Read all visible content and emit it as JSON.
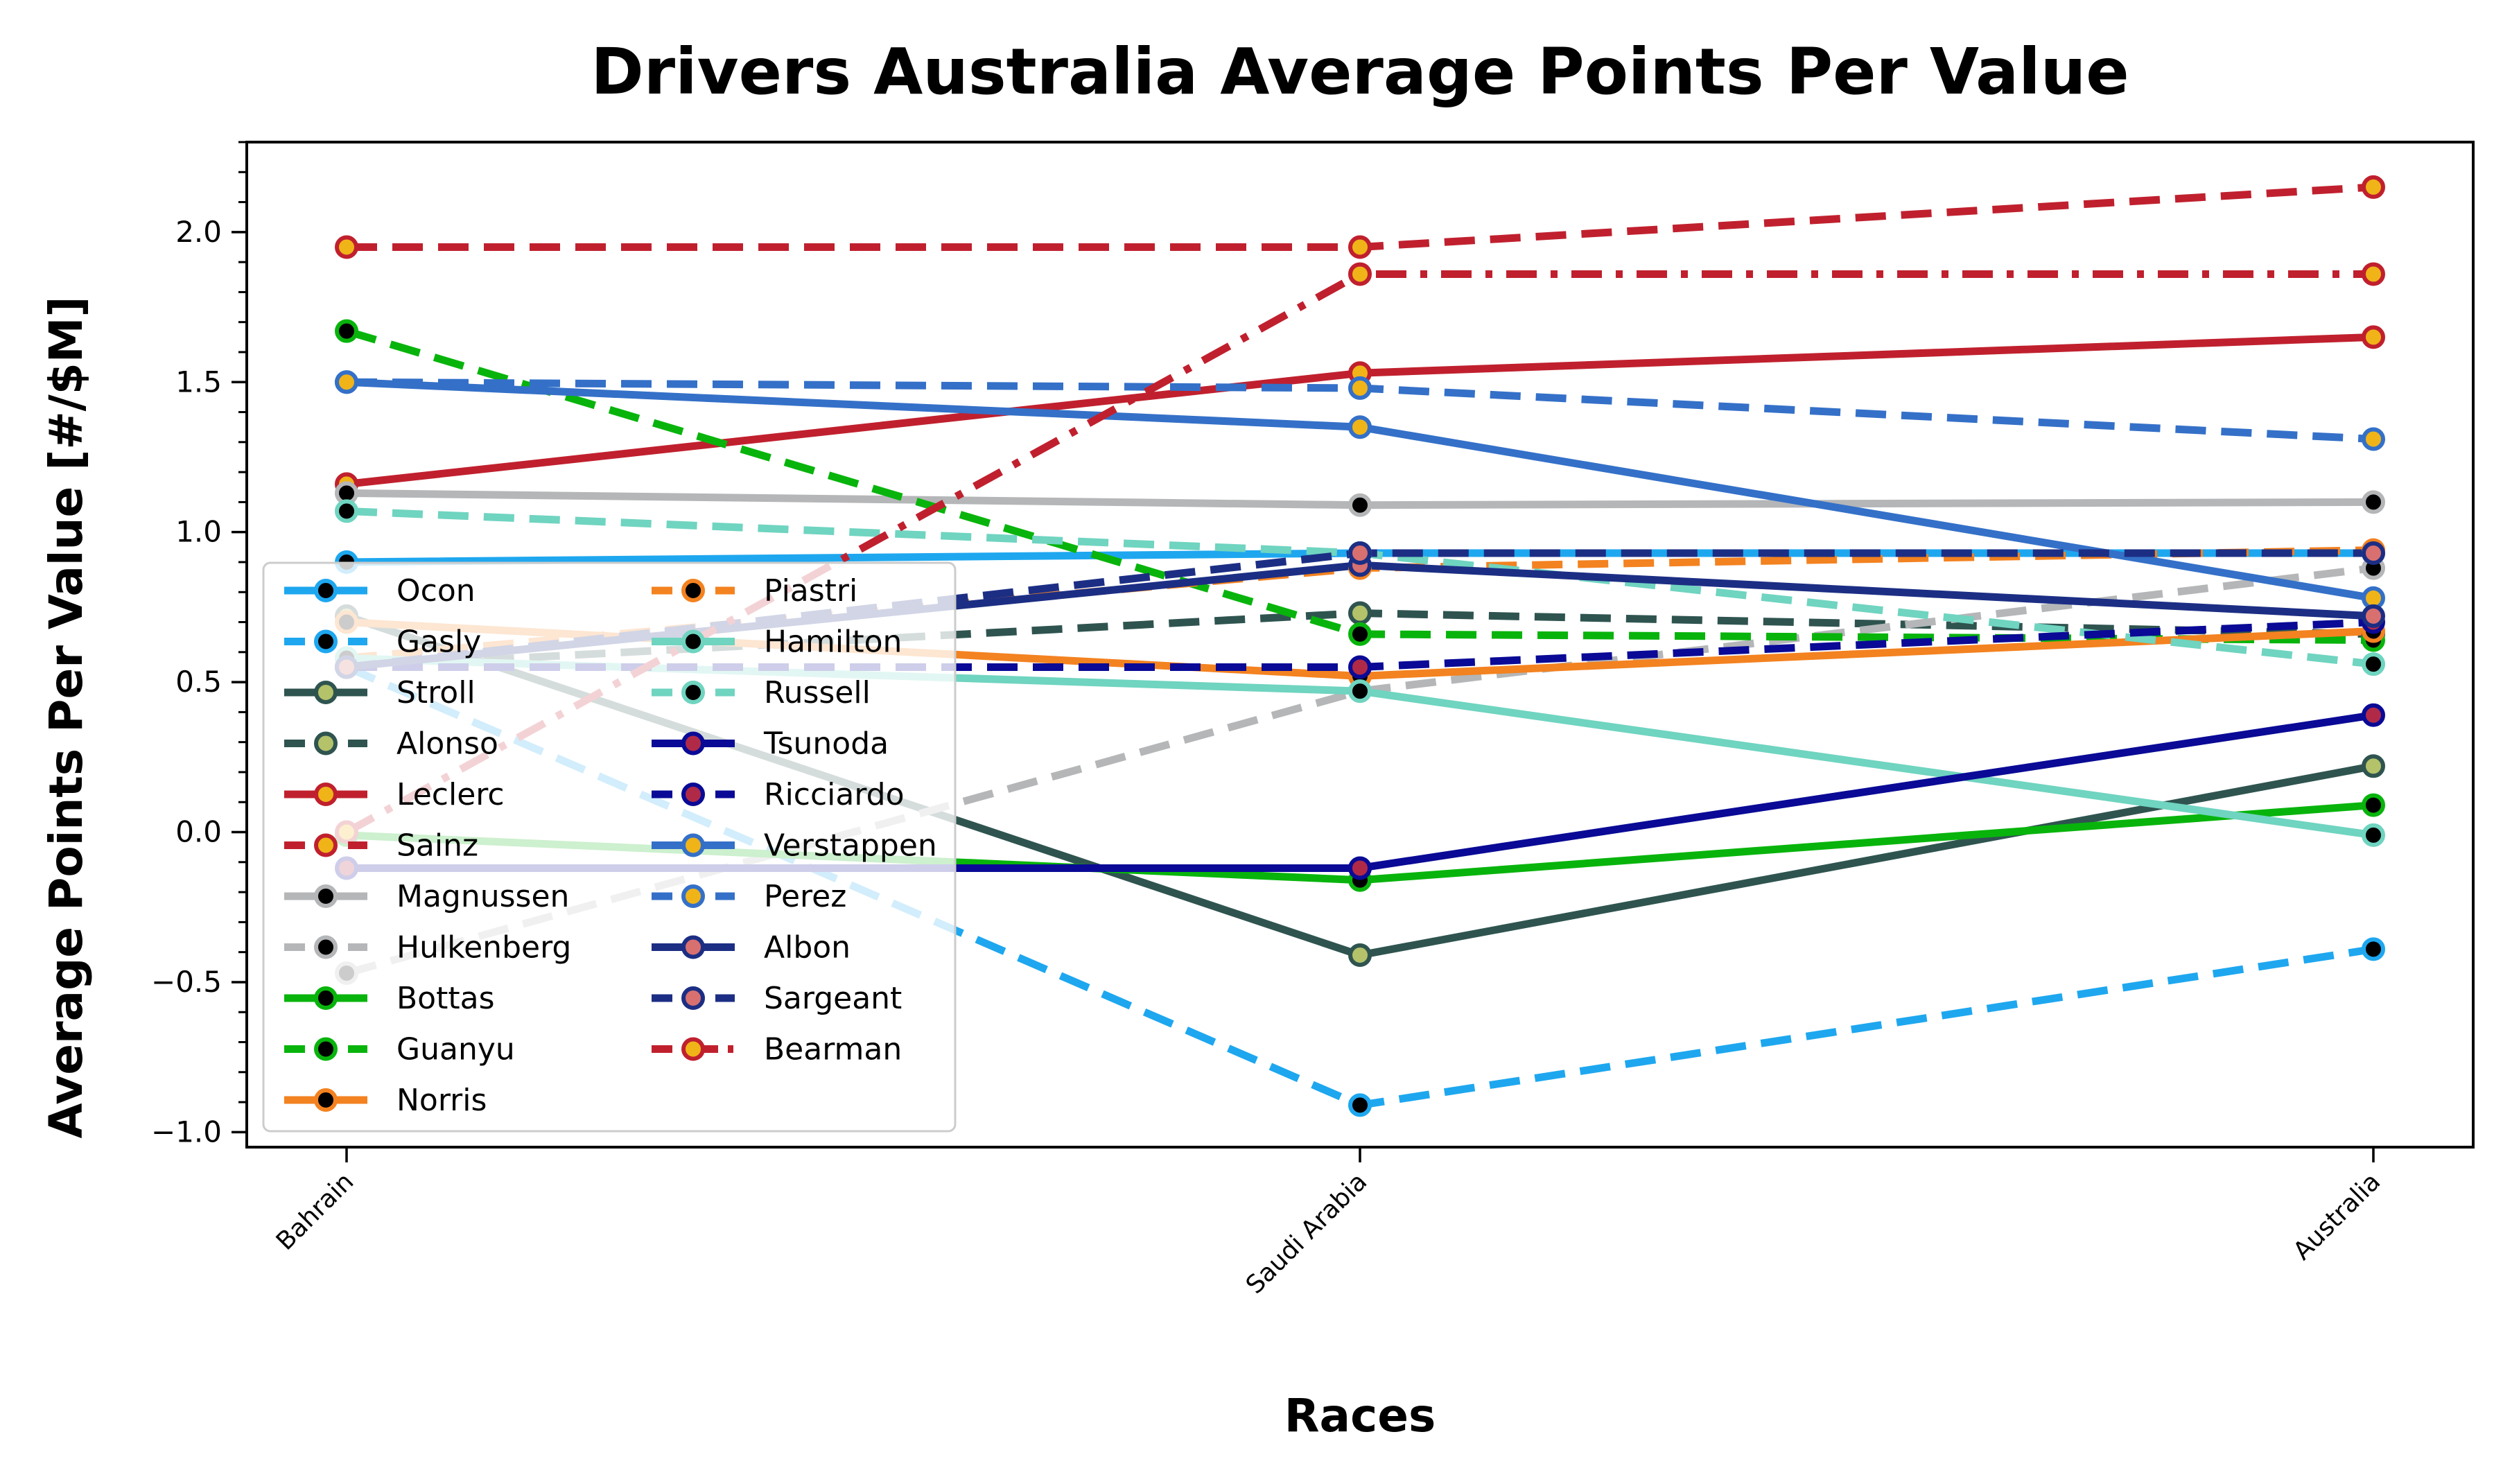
{
  "chart_data": {
    "type": "line",
    "title": "Drivers Australia Average Points Per Value",
    "xlabel": "Races",
    "ylabel": "Average Points Per Value [#/$M]",
    "categories": [
      "Bahrain",
      "Saudi Arabia",
      "Australia"
    ],
    "ylim": [
      -1.05,
      2.3
    ],
    "yticks": [
      -1.0,
      -0.5,
      0.0,
      0.5,
      1.0,
      1.5,
      2.0
    ],
    "ytick_labels": [
      "−1.0",
      "−0.5",
      "0.0",
      "0.5",
      "1.0",
      "1.5",
      "2.0"
    ],
    "grid": false,
    "legend_position": "lower-left",
    "legend_columns": 2,
    "series": [
      {
        "name": "Ocon",
        "values": [
          0.9,
          0.93,
          0.93
        ],
        "color": "#1ea7ef",
        "dash": "solid",
        "marker_face": "#000000",
        "marker_edge": "#1ea7ef"
      },
      {
        "name": "Gasly",
        "values": [
          0.55,
          -0.91,
          -0.39
        ],
        "color": "#1ea7ef",
        "dash": "dashed",
        "marker_face": "#000000",
        "marker_edge": "#1ea7ef"
      },
      {
        "name": "Stroll",
        "values": [
          0.72,
          -0.41,
          0.22
        ],
        "color": "#2f5450",
        "dash": "solid",
        "marker_face": "#b4c26a",
        "marker_edge": "#2f5450"
      },
      {
        "name": "Alonso",
        "values": [
          0.55,
          0.73,
          0.66
        ],
        "color": "#2f5450",
        "dash": "dashed",
        "marker_face": "#b4c26a",
        "marker_edge": "#2f5450"
      },
      {
        "name": "Leclerc",
        "values": [
          1.16,
          1.53,
          1.65
        ],
        "color": "#c0202e",
        "dash": "solid",
        "marker_face": "#f0b418",
        "marker_edge": "#c0202e"
      },
      {
        "name": "Sainz",
        "values": [
          1.95,
          1.95,
          2.15
        ],
        "color": "#c0202e",
        "dash": "dashed",
        "marker_face": "#f0b418",
        "marker_edge": "#c0202e"
      },
      {
        "name": "Magnussen",
        "values": [
          1.13,
          1.09,
          1.1
        ],
        "color": "#b4b6b8",
        "dash": "solid",
        "marker_face": "#000000",
        "marker_edge": "#b4b6b8"
      },
      {
        "name": "Hulkenberg",
        "values": [
          -0.47,
          0.47,
          0.88
        ],
        "color": "#b4b6b8",
        "dash": "dashed",
        "marker_face": "#000000",
        "marker_edge": "#b4b6b8"
      },
      {
        "name": "Bottas",
        "values": [
          -0.01,
          -0.16,
          0.09
        ],
        "color": "#08b40c",
        "dash": "solid",
        "marker_face": "#000000",
        "marker_edge": "#08b40c"
      },
      {
        "name": "Guanyu",
        "values": [
          1.67,
          0.66,
          0.64
        ],
        "color": "#08b40c",
        "dash": "dashed",
        "marker_face": "#000000",
        "marker_edge": "#08b40c"
      },
      {
        "name": "Norris",
        "values": [
          0.7,
          0.52,
          0.67
        ],
        "color": "#f38220",
        "dash": "solid",
        "marker_face": "#000000",
        "marker_edge": "#f38220"
      },
      {
        "name": "Piastri",
        "values": [
          0.58,
          0.88,
          0.94
        ],
        "color": "#f38220",
        "dash": "dashed",
        "marker_face": "#000000",
        "marker_edge": "#f38220"
      },
      {
        "name": "Hamilton",
        "values": [
          0.58,
          0.47,
          -0.01
        ],
        "color": "#6fd4c0",
        "dash": "solid",
        "marker_face": "#000000",
        "marker_edge": "#6fd4c0"
      },
      {
        "name": "Russell",
        "values": [
          1.07,
          0.93,
          0.56
        ],
        "color": "#6fd4c0",
        "dash": "dashed",
        "marker_face": "#000000",
        "marker_edge": "#6fd4c0"
      },
      {
        "name": "Tsunoda",
        "values": [
          -0.12,
          -0.12,
          0.39
        ],
        "color": "#0a0a96",
        "dash": "solid",
        "marker_face": "#b02a48",
        "marker_edge": "#0a0a96"
      },
      {
        "name": "Ricciardo",
        "values": [
          0.55,
          0.55,
          0.7
        ],
        "color": "#0a0a96",
        "dash": "dashed",
        "marker_face": "#b02a48",
        "marker_edge": "#0a0a96"
      },
      {
        "name": "Verstappen",
        "values": [
          1.5,
          1.35,
          0.78
        ],
        "color": "#3470c8",
        "dash": "solid",
        "marker_face": "#f0b418",
        "marker_edge": "#3470c8"
      },
      {
        "name": "Perez",
        "values": [
          1.5,
          1.48,
          1.31
        ],
        "color": "#3470c8",
        "dash": "dashed",
        "marker_face": "#f0b418",
        "marker_edge": "#3470c8"
      },
      {
        "name": "Albon",
        "values": [
          0.55,
          0.89,
          0.72
        ],
        "color": "#1c2e84",
        "dash": "solid",
        "marker_face": "#d87070",
        "marker_edge": "#1c2e84"
      },
      {
        "name": "Sargeant",
        "values": [
          0.55,
          0.93,
          0.93
        ],
        "color": "#1c2e84",
        "dash": "dashed",
        "marker_face": "#d87070",
        "marker_edge": "#1c2e84"
      },
      {
        "name": "Bearman",
        "values": [
          0.0,
          1.86,
          1.86
        ],
        "color": "#c0202e",
        "dash": "dashdot",
        "marker_face": "#f0b418",
        "marker_edge": "#c0202e"
      }
    ]
  }
}
